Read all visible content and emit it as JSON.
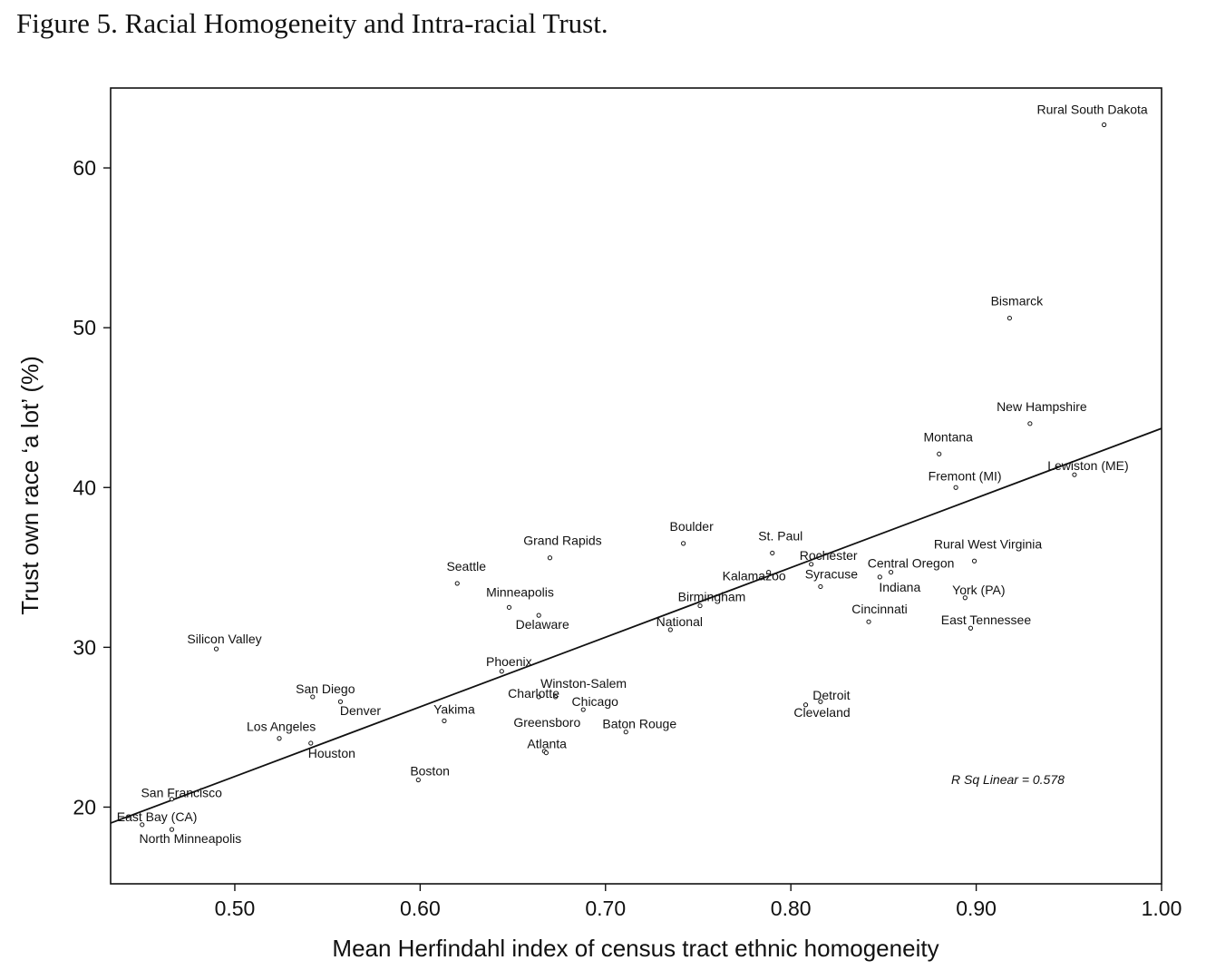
{
  "figure": {
    "title": "Figure 5.  Racial Homogeneity and Intra-racial Trust."
  },
  "chart_data": {
    "type": "scatter",
    "title": "Figure 5.  Racial Homogeneity and Intra-racial Trust.",
    "xlabel": "Mean Herfindahl index of census tract ethnic homogeneity",
    "ylabel": "Trust own race ‘a lot’ (%)",
    "xlim": [
      0.433,
      1.0
    ],
    "ylim": [
      15.2,
      65.0
    ],
    "x_ticks": [
      {
        "value": 0.5,
        "label": "0.50"
      },
      {
        "value": 0.6,
        "label": "0.60"
      },
      {
        "value": 0.7,
        "label": "0.70"
      },
      {
        "value": 0.8,
        "label": "0.80"
      },
      {
        "value": 0.9,
        "label": "0.90"
      },
      {
        "value": 1.0,
        "label": "1.00"
      }
    ],
    "y_ticks": [
      {
        "value": 20,
        "label": "20"
      },
      {
        "value": 30,
        "label": "30"
      },
      {
        "value": 40,
        "label": "40"
      },
      {
        "value": 50,
        "label": "50"
      },
      {
        "value": 60,
        "label": "60"
      }
    ],
    "grid": false,
    "fit_line": {
      "x": [
        0.433,
        1.0
      ],
      "y": [
        19.0,
        43.7
      ]
    },
    "annotation": "R Sq Linear = 0.578",
    "points": [
      {
        "label": "Rural South Dakota",
        "x": 0.969,
        "y": 62.7
      },
      {
        "label": "Bismarck",
        "x": 0.918,
        "y": 50.6
      },
      {
        "label": "New Hampshire",
        "x": 0.929,
        "y": 44.0
      },
      {
        "label": "Montana",
        "x": 0.88,
        "y": 42.1
      },
      {
        "label": "Lewiston (ME)",
        "x": 0.953,
        "y": 40.8
      },
      {
        "label": "Fremont (MI)",
        "x": 0.889,
        "y": 40.0
      },
      {
        "label": "Rural West Virginia",
        "x": 0.899,
        "y": 35.4
      },
      {
        "label": "Boulder",
        "x": 0.742,
        "y": 36.5
      },
      {
        "label": "St. Paul",
        "x": 0.79,
        "y": 35.9
      },
      {
        "label": "Grand Rapids",
        "x": 0.67,
        "y": 35.6
      },
      {
        "label": "Rochester",
        "x": 0.811,
        "y": 35.2
      },
      {
        "label": "Central Oregon",
        "x": 0.854,
        "y": 34.7
      },
      {
        "label": "Kalamazoo",
        "x": 0.788,
        "y": 34.7
      },
      {
        "label": "Indiana",
        "x": 0.848,
        "y": 34.4
      },
      {
        "label": "Seattle",
        "x": 0.62,
        "y": 34.0
      },
      {
        "label": "Syracuse",
        "x": 0.816,
        "y": 33.8
      },
      {
        "label": "York (PA)",
        "x": 0.894,
        "y": 33.1
      },
      {
        "label": "Birmingham",
        "x": 0.751,
        "y": 32.6
      },
      {
        "label": "Minneapolis",
        "x": 0.648,
        "y": 32.5
      },
      {
        "label": "Delaware",
        "x": 0.664,
        "y": 32.0
      },
      {
        "label": "Cincinnati",
        "x": 0.842,
        "y": 31.6
      },
      {
        "label": "East Tennessee",
        "x": 0.897,
        "y": 31.2
      },
      {
        "label": "National",
        "x": 0.735,
        "y": 31.1
      },
      {
        "label": "Silicon Valley",
        "x": 0.49,
        "y": 29.9
      },
      {
        "label": "Phoenix",
        "x": 0.644,
        "y": 28.5
      },
      {
        "label": "Winston-Salem",
        "x": 0.673,
        "y": 26.9
      },
      {
        "label": "Charlotte",
        "x": 0.664,
        "y": 26.9
      },
      {
        "label": "San Diego",
        "x": 0.542,
        "y": 26.9
      },
      {
        "label": "Detroit",
        "x": 0.816,
        "y": 26.6
      },
      {
        "label": "Denver",
        "x": 0.557,
        "y": 26.6
      },
      {
        "label": "Cleveland",
        "x": 0.808,
        "y": 26.4
      },
      {
        "label": "Chicago",
        "x": 0.688,
        "y": 26.1
      },
      {
        "label": "Yakima",
        "x": 0.613,
        "y": 25.4
      },
      {
        "label": "Baton Rouge",
        "x": 0.711,
        "y": 24.7
      },
      {
        "label": "Los Angeles",
        "x": 0.524,
        "y": 24.3
      },
      {
        "label": "Houston",
        "x": 0.541,
        "y": 24.0
      },
      {
        "label": "Greensboro",
        "x": 0.667,
        "y": 23.5
      },
      {
        "label": "Atlanta",
        "x": 0.668,
        "y": 23.4
      },
      {
        "label": "Boston",
        "x": 0.599,
        "y": 21.7
      },
      {
        "label": "San Francisco",
        "x": 0.466,
        "y": 20.5
      },
      {
        "label": "North Minneapolis",
        "x": 0.466,
        "y": 18.6
      },
      {
        "label": "East Bay (CA)",
        "x": 0.45,
        "y": 18.9
      }
    ]
  }
}
